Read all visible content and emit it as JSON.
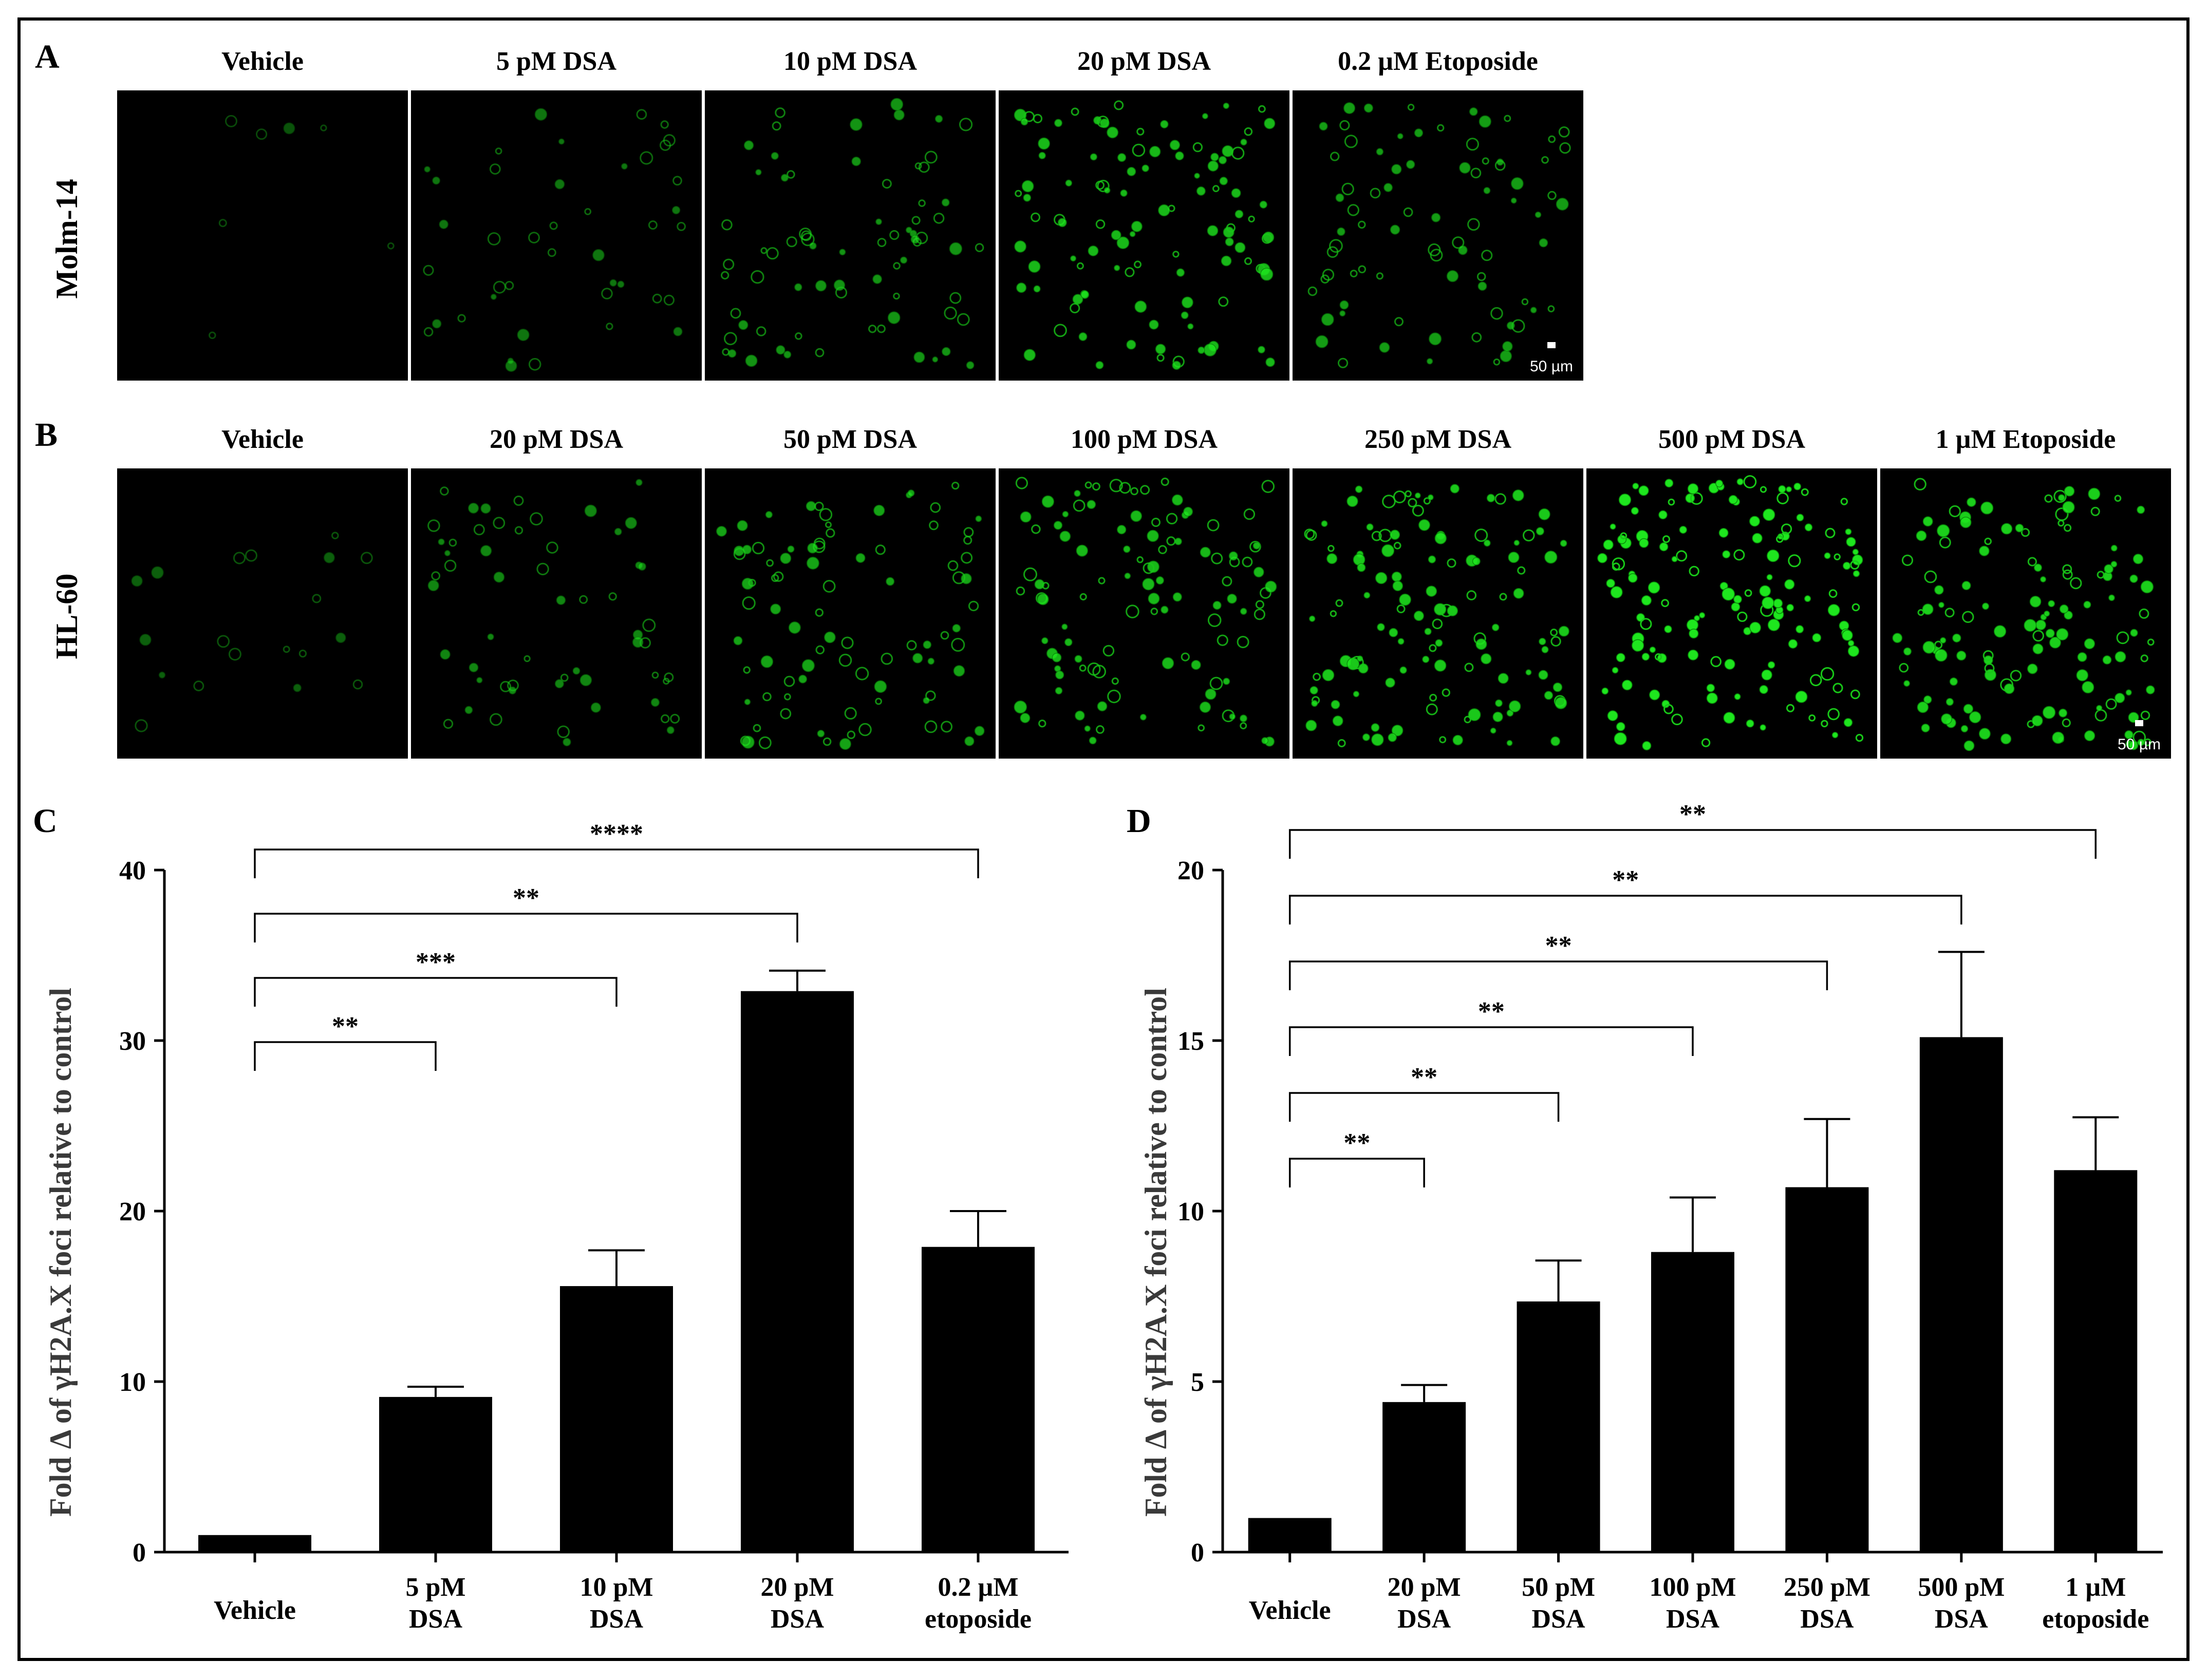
{
  "panel_labels": [
    "A",
    "B",
    "C",
    "D"
  ],
  "panel_a": {
    "row_label": "Molm-14",
    "columns": [
      "Vehicle",
      "5 pM DSA",
      "10 pM DSA",
      "20 pM DSA",
      "0.2 µM Etoposide"
    ],
    "foci_level": [
      0.02,
      0.25,
      0.45,
      0.7,
      0.5
    ],
    "scale_bar": "50 µm"
  },
  "panel_b": {
    "row_label": "HL-60",
    "columns": [
      "Vehicle",
      "20 pM DSA",
      "50 pM DSA",
      "100 pM DSA",
      "250 pM DSA",
      "500 pM DSA",
      "1 µM Etoposide"
    ],
    "foci_level": [
      0.1,
      0.35,
      0.55,
      0.7,
      0.8,
      1.0,
      0.85
    ],
    "scale_bar": "50 µm"
  },
  "colors": {
    "foci": "#1ee61e",
    "bar": "#000000",
    "background": "#ffffff"
  },
  "chart_data": [
    {
      "type": "bar",
      "panel": "C",
      "ylabel": "Fold Δ of γH2A.X foci relative to control",
      "ylim": [
        0,
        40
      ],
      "yticks": [
        0,
        10,
        20,
        30,
        40
      ],
      "categories": [
        [
          "Vehicle"
        ],
        [
          "5 pM",
          "DSA"
        ],
        [
          "10 pM",
          "DSA"
        ],
        [
          "20 pM",
          "DSA"
        ],
        [
          "0.2 µM",
          "etoposide"
        ]
      ],
      "values": [
        1,
        9.1,
        15.6,
        32.9,
        17.9
      ],
      "errors": [
        0,
        0.6,
        2.1,
        1.2,
        2.1
      ],
      "comparisons": [
        {
          "from": 0,
          "to": 1,
          "label": "**"
        },
        {
          "from": 0,
          "to": 2,
          "label": "***"
        },
        {
          "from": 0,
          "to": 3,
          "label": "**"
        },
        {
          "from": 0,
          "to": 4,
          "label": "****"
        }
      ]
    },
    {
      "type": "bar",
      "panel": "D",
      "ylabel": "Fold Δ of γH2A.X foci relative to control",
      "ylim": [
        0,
        20
      ],
      "yticks": [
        0,
        5,
        10,
        15,
        20
      ],
      "categories": [
        [
          "Vehicle"
        ],
        [
          "20 pM",
          "DSA"
        ],
        [
          "50 pM",
          "DSA"
        ],
        [
          "100 pM",
          "DSA"
        ],
        [
          "250 pM",
          "DSA"
        ],
        [
          "500 pM",
          "DSA"
        ],
        [
          "1 µM",
          "etoposide"
        ]
      ],
      "values": [
        1,
        4.4,
        7.35,
        8.8,
        10.7,
        15.1,
        11.2
      ],
      "errors": [
        0,
        0.5,
        1.2,
        1.6,
        2.0,
        2.5,
        1.55
      ],
      "comparisons": [
        {
          "from": 0,
          "to": 1,
          "label": "**"
        },
        {
          "from": 0,
          "to": 2,
          "label": "**"
        },
        {
          "from": 0,
          "to": 3,
          "label": "**"
        },
        {
          "from": 0,
          "to": 4,
          "label": "**"
        },
        {
          "from": 0,
          "to": 5,
          "label": "**"
        },
        {
          "from": 0,
          "to": 6,
          "label": "**"
        }
      ]
    }
  ]
}
